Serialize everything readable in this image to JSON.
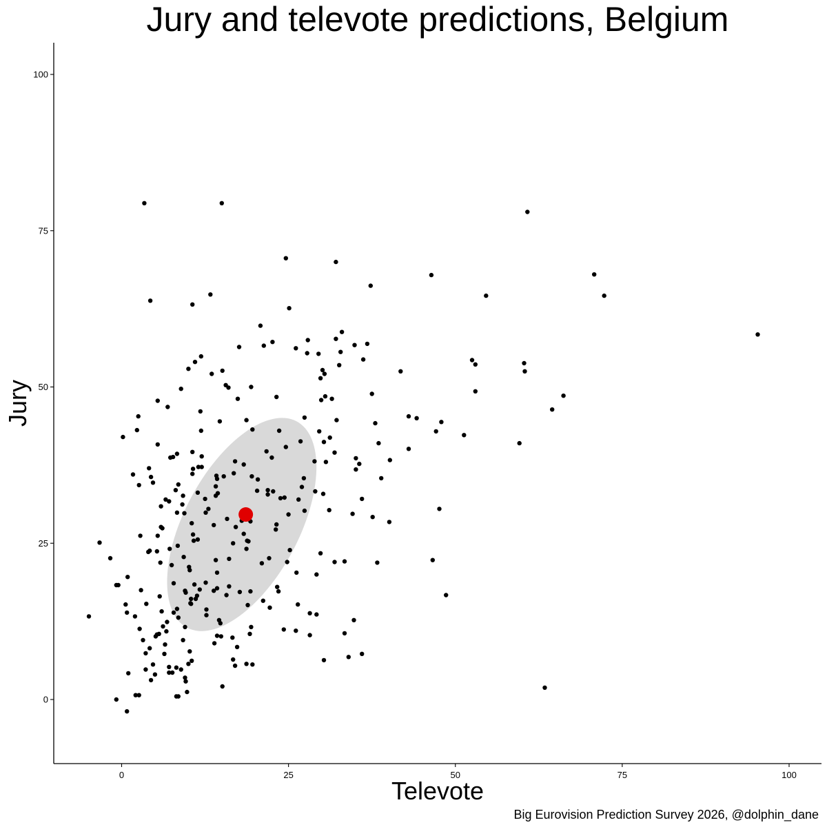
{
  "chart_data": {
    "type": "scatter",
    "title": "Jury and televote predictions, Belgium",
    "xlabel": "Televote",
    "ylabel": "Jury",
    "caption": "Big Eurovision Prediction Survey 2026, @dolphin_dane",
    "xlim": [
      -10,
      105
    ],
    "ylim": [
      -10,
      105
    ],
    "x_ticks": [
      0,
      25,
      50,
      75,
      100
    ],
    "y_ticks": [
      0,
      25,
      50,
      75,
      100
    ],
    "grid": false,
    "colors": {
      "points": "#000000",
      "mean_point": "#e00000",
      "ellipse_fill": "#d9d9d9"
    },
    "mean": {
      "x": 18.6,
      "y": 29.6
    },
    "ellipse": {
      "cx": 18.0,
      "cy": 28.0,
      "rx": 17.5,
      "ry": 8.6,
      "angle_deg": 62
    },
    "points": [
      [
        3.4,
        79.4
      ],
      [
        15.0,
        79.4
      ],
      [
        60.8,
        78.0
      ],
      [
        24.6,
        70.6
      ],
      [
        32.1,
        70.0
      ],
      [
        46.4,
        67.9
      ],
      [
        70.8,
        68.0
      ],
      [
        37.3,
        66.2
      ],
      [
        54.6,
        64.6
      ],
      [
        72.3,
        64.6
      ],
      [
        13.3,
        64.8
      ],
      [
        4.3,
        63.8
      ],
      [
        10.6,
        63.2
      ],
      [
        25.1,
        62.6
      ],
      [
        20.8,
        59.8
      ],
      [
        33.0,
        58.8
      ],
      [
        95.3,
        58.4
      ],
      [
        27.9,
        57.5
      ],
      [
        32.1,
        57.7
      ],
      [
        22.6,
        57.2
      ],
      [
        21.3,
        56.6
      ],
      [
        36.8,
        56.9
      ],
      [
        34.9,
        56.7
      ],
      [
        17.6,
        56.4
      ],
      [
        26.1,
        56.2
      ],
      [
        27.8,
        55.4
      ],
      [
        29.5,
        55.3
      ],
      [
        32.8,
        55.6
      ],
      [
        11.9,
        54.9
      ],
      [
        52.5,
        54.3
      ],
      [
        36.2,
        54.4
      ],
      [
        11.0,
        54.0
      ],
      [
        53.0,
        53.6
      ],
      [
        32.6,
        53.5
      ],
      [
        60.3,
        53.8
      ],
      [
        10.0,
        52.9
      ],
      [
        30.1,
        52.7
      ],
      [
        15.1,
        52.6
      ],
      [
        60.4,
        52.5
      ],
      [
        41.8,
        52.5
      ],
      [
        30.4,
        52.1
      ],
      [
        13.5,
        52.1
      ],
      [
        29.8,
        51.4
      ],
      [
        15.6,
        50.3
      ],
      [
        16.0,
        49.9
      ],
      [
        19.4,
        50.0
      ],
      [
        8.9,
        49.7
      ],
      [
        53.0,
        49.3
      ],
      [
        37.5,
        48.9
      ],
      [
        23.2,
        48.4
      ],
      [
        30.5,
        48.5
      ],
      [
        31.5,
        48.1
      ],
      [
        17.4,
        48.1
      ],
      [
        29.9,
        47.9
      ],
      [
        5.4,
        47.8
      ],
      [
        66.2,
        48.6
      ],
      [
        6.9,
        46.8
      ],
      [
        64.5,
        46.4
      ],
      [
        11.8,
        46.1
      ],
      [
        43.0,
        45.3
      ],
      [
        44.2,
        45.0
      ],
      [
        2.5,
        45.3
      ],
      [
        27.4,
        45.1
      ],
      [
        18.7,
        44.7
      ],
      [
        14.7,
        44.5
      ],
      [
        47.9,
        44.4
      ],
      [
        32.2,
        44.7
      ],
      [
        38.0,
        44.2
      ],
      [
        2.3,
        43.1
      ],
      [
        11.9,
        43.0
      ],
      [
        19.6,
        43.2
      ],
      [
        23.6,
        43.0
      ],
      [
        47.1,
        42.9
      ],
      [
        29.6,
        42.9
      ],
      [
        51.3,
        42.3
      ],
      [
        0.2,
        42.0
      ],
      [
        31.2,
        41.9
      ],
      [
        30.3,
        41.2
      ],
      [
        26.8,
        41.3
      ],
      [
        38.5,
        41.0
      ],
      [
        59.6,
        41.0
      ],
      [
        5.4,
        40.8
      ],
      [
        24.6,
        40.4
      ],
      [
        43.0,
        40.1
      ],
      [
        21.7,
        39.7
      ],
      [
        31.9,
        39.5
      ],
      [
        10.6,
        39.6
      ],
      [
        8.3,
        39.3
      ],
      [
        12.0,
        38.9
      ],
      [
        7.7,
        38.8
      ],
      [
        7.3,
        38.7
      ],
      [
        22.5,
        38.7
      ],
      [
        35.1,
        38.6
      ],
      [
        40.2,
        38.3
      ],
      [
        17.0,
        38.1
      ],
      [
        28.9,
        38.1
      ],
      [
        30.6,
        38.0
      ],
      [
        35.6,
        37.7
      ],
      [
        18.3,
        37.6
      ],
      [
        11.5,
        37.2
      ],
      [
        12.0,
        37.2
      ],
      [
        4.1,
        37.0
      ],
      [
        10.7,
        36.9
      ],
      [
        35.1,
        36.8
      ],
      [
        16.8,
        36.2
      ],
      [
        10.6,
        36.1
      ],
      [
        1.7,
        36.0
      ],
      [
        14.2,
        35.8
      ],
      [
        19.5,
        35.7
      ],
      [
        15.3,
        35.7
      ],
      [
        4.4,
        35.6
      ],
      [
        14.3,
        35.3
      ],
      [
        20.4,
        35.2
      ],
      [
        27.3,
        35.4
      ],
      [
        38.9,
        35.4
      ],
      [
        4.7,
        34.7
      ],
      [
        8.5,
        34.4
      ],
      [
        14.1,
        34.1
      ],
      [
        2.6,
        34.3
      ],
      [
        27.0,
        34.0
      ],
      [
        20.3,
        33.4
      ],
      [
        29.0,
        33.3
      ],
      [
        8.1,
        33.5
      ],
      [
        21.9,
        33.5
      ],
      [
        22.7,
        33.3
      ],
      [
        11.4,
        33.1
      ],
      [
        14.4,
        33.0
      ],
      [
        30.2,
        32.9
      ],
      [
        21.9,
        32.8
      ],
      [
        9.2,
        32.6
      ],
      [
        14.1,
        32.6
      ],
      [
        12.5,
        32.1
      ],
      [
        6.6,
        32.0
      ],
      [
        26.5,
        32.0
      ],
      [
        24.4,
        32.3
      ],
      [
        36.0,
        32.1
      ],
      [
        23.8,
        32.2
      ],
      [
        7.1,
        31.7
      ],
      [
        9.1,
        31.2
      ],
      [
        5.9,
        30.9
      ],
      [
        13.0,
        30.5
      ],
      [
        31.1,
        30.3
      ],
      [
        12.6,
        29.9
      ],
      [
        9.4,
        29.8
      ],
      [
        8.3,
        29.9
      ],
      [
        34.6,
        29.7
      ],
      [
        19.0,
        29.8
      ],
      [
        25.0,
        29.6
      ],
      [
        18.2,
        29.4
      ],
      [
        18.9,
        29.3
      ],
      [
        27.4,
        30.2
      ],
      [
        47.6,
        30.5
      ],
      [
        37.6,
        29.2
      ],
      [
        15.8,
        28.9
      ],
      [
        18.0,
        28.6
      ],
      [
        19.3,
        28.5
      ],
      [
        13.8,
        27.9
      ],
      [
        40.1,
        28.4
      ],
      [
        10.5,
        28.2
      ],
      [
        23.2,
        28.0
      ],
      [
        17.1,
        27.6
      ],
      [
        5.9,
        27.6
      ],
      [
        6.1,
        27.4
      ],
      [
        23.1,
        27.2
      ],
      [
        18.3,
        26.5
      ],
      [
        10.7,
        26.4
      ],
      [
        2.8,
        26.2
      ],
      [
        5.4,
        26.2
      ],
      [
        11.4,
        25.6
      ],
      [
        18.8,
        25.4
      ],
      [
        16.7,
        25.0
      ],
      [
        10.8,
        25.4
      ],
      [
        19.0,
        25.3
      ],
      [
        -3.3,
        25.1
      ],
      [
        8.4,
        24.6
      ],
      [
        7.2,
        24.1
      ],
      [
        18.7,
        24.1
      ],
      [
        4.0,
        23.6
      ],
      [
        5.3,
        23.7
      ],
      [
        4.2,
        23.8
      ],
      [
        25.2,
        23.9
      ],
      [
        9.3,
        22.8
      ],
      [
        29.8,
        23.4
      ],
      [
        16.1,
        22.5
      ],
      [
        14.1,
        22.3
      ],
      [
        22.1,
        22.6
      ],
      [
        24.8,
        22.0
      ],
      [
        -1.7,
        22.6
      ],
      [
        46.6,
        22.3
      ],
      [
        33.4,
        22.1
      ],
      [
        31.9,
        22.0
      ],
      [
        38.3,
        21.9
      ],
      [
        5.8,
        21.9
      ],
      [
        21.0,
        21.8
      ],
      [
        10.1,
        21.2
      ],
      [
        7.5,
        21.5
      ],
      [
        10.2,
        20.7
      ],
      [
        14.3,
        20.3
      ],
      [
        29.2,
        20.0
      ],
      [
        26.2,
        20.3
      ],
      [
        0.9,
        19.6
      ],
      [
        7.8,
        18.6
      ],
      [
        12.6,
        18.7
      ],
      [
        9.5,
        17.4
      ],
      [
        16.1,
        18.1
      ],
      [
        10.9,
        18.4
      ],
      [
        11.7,
        17.6
      ],
      [
        19.3,
        17.3
      ],
      [
        2.9,
        17.5
      ],
      [
        9.6,
        17.1
      ],
      [
        13.8,
        17.4
      ],
      [
        5.7,
        16.5
      ],
      [
        11.3,
        16.6
      ],
      [
        17.7,
        17.2
      ],
      [
        10.4,
        16.1
      ],
      [
        23.3,
        18.0
      ],
      [
        23.5,
        17.3
      ],
      [
        -0.8,
        18.3
      ],
      [
        -0.5,
        18.3
      ],
      [
        14.3,
        17.8
      ],
      [
        15.7,
        16.7
      ],
      [
        11.1,
        16.1
      ],
      [
        10.3,
        15.4
      ],
      [
        21.2,
        15.8
      ],
      [
        26.4,
        15.2
      ],
      [
        10.4,
        15.3
      ],
      [
        48.6,
        16.7
      ],
      [
        22.2,
        14.7
      ],
      [
        12.7,
        14.4
      ],
      [
        8.3,
        14.5
      ],
      [
        0.6,
        15.2
      ],
      [
        3.7,
        15.3
      ],
      [
        18.9,
        15.1
      ],
      [
        0.8,
        13.9
      ],
      [
        6.0,
        14.1
      ],
      [
        28.2,
        13.8
      ],
      [
        12.7,
        13.5
      ],
      [
        2.0,
        13.3
      ],
      [
        7.8,
        13.9
      ],
      [
        29.2,
        13.6
      ],
      [
        -4.9,
        13.3
      ],
      [
        6.8,
        12.4
      ],
      [
        8.5,
        13.1
      ],
      [
        14.6,
        12.7
      ],
      [
        14.8,
        12.2
      ],
      [
        34.8,
        12.7
      ],
      [
        6.2,
        11.7
      ],
      [
        19.4,
        11.6
      ],
      [
        24.3,
        11.2
      ],
      [
        9.5,
        11.6
      ],
      [
        2.7,
        11.3
      ],
      [
        26.1,
        11.0
      ],
      [
        6.7,
        10.9
      ],
      [
        33.4,
        10.6
      ],
      [
        14.3,
        10.2
      ],
      [
        28.2,
        10.3
      ],
      [
        5.3,
        10.4
      ],
      [
        14.9,
        10.1
      ],
      [
        19.2,
        10.5
      ],
      [
        5.1,
        10.1
      ],
      [
        5.6,
        10.5
      ],
      [
        16.6,
        9.9
      ],
      [
        3.2,
        9.5
      ],
      [
        9.2,
        9.5
      ],
      [
        13.9,
        9.0
      ],
      [
        6.5,
        8.8
      ],
      [
        17.3,
        8.4
      ],
      [
        4.2,
        8.2
      ],
      [
        10.2,
        7.7
      ],
      [
        3.6,
        7.4
      ],
      [
        36.0,
        7.3
      ],
      [
        6.4,
        7.3
      ],
      [
        34.0,
        6.8
      ],
      [
        16.7,
        6.4
      ],
      [
        30.3,
        6.3
      ],
      [
        10.5,
        6.2
      ],
      [
        18.7,
        5.7
      ],
      [
        19.6,
        5.6
      ],
      [
        10.0,
        5.7
      ],
      [
        17.0,
        5.4
      ],
      [
        4.7,
        5.6
      ],
      [
        7.1,
        5.2
      ],
      [
        8.2,
        5.1
      ],
      [
        8.9,
        4.8
      ],
      [
        3.6,
        4.8
      ],
      [
        7.1,
        4.3
      ],
      [
        7.6,
        4.3
      ],
      [
        1.0,
        4.2
      ],
      [
        5.0,
        4.0
      ],
      [
        9.5,
        3.5
      ],
      [
        4.4,
        3.1
      ],
      [
        9.6,
        2.9
      ],
      [
        15.1,
        2.1
      ],
      [
        63.4,
        1.9
      ],
      [
        9.8,
        1.2
      ],
      [
        2.6,
        0.7
      ],
      [
        2.1,
        0.7
      ],
      [
        8.2,
        0.5
      ],
      [
        8.5,
        0.5
      ],
      [
        -0.8,
        0.0
      ],
      [
        0.8,
        -1.9
      ]
    ]
  }
}
